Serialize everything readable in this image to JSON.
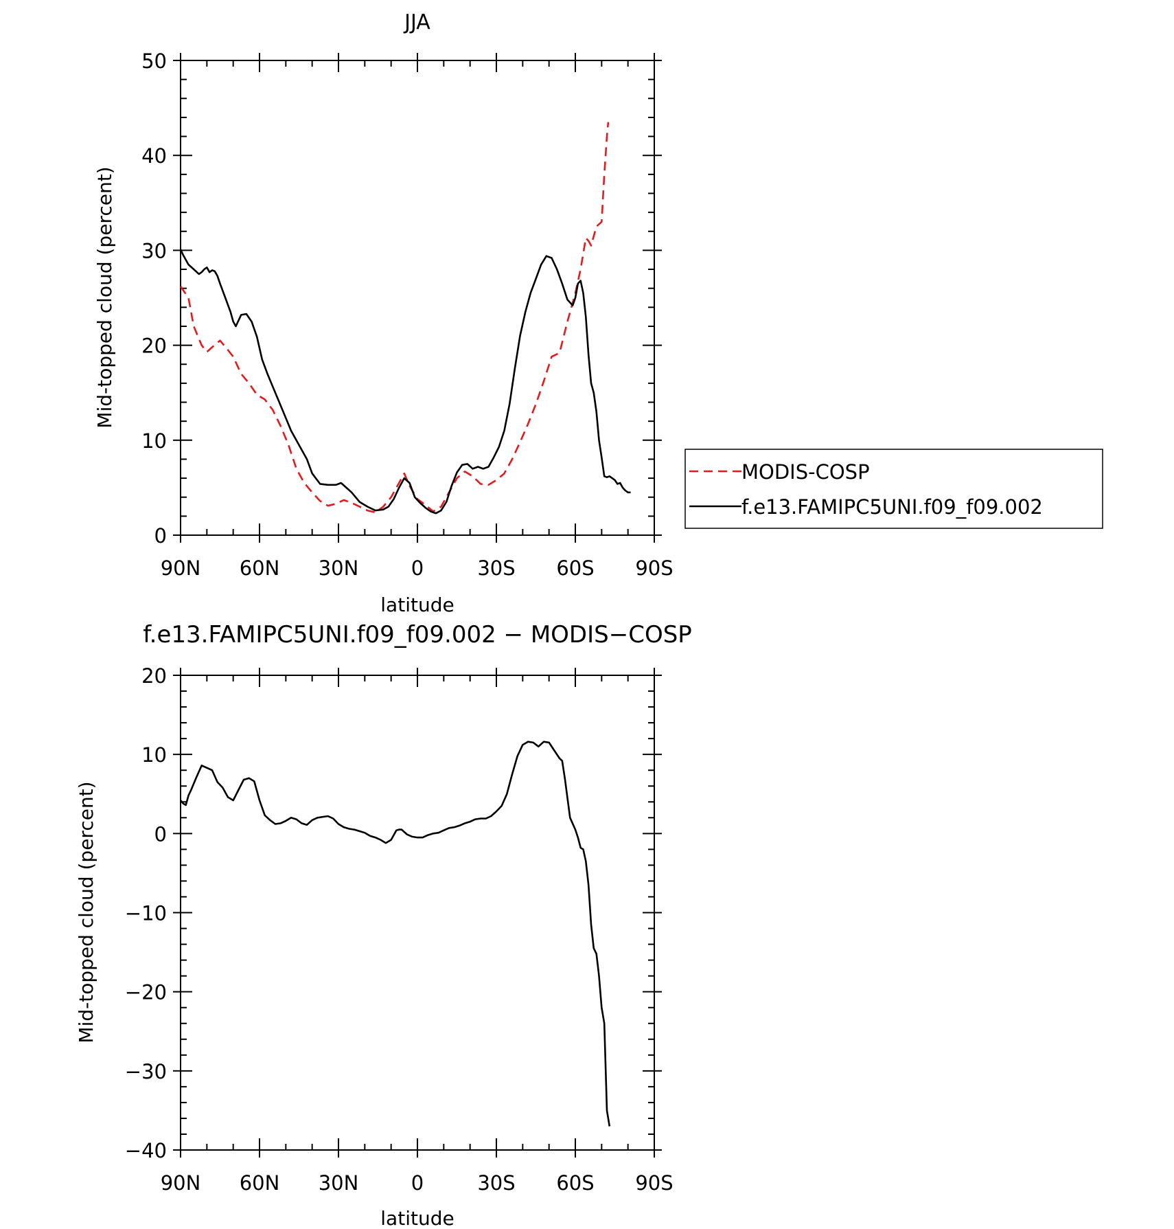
{
  "chart_data": [
    {
      "type": "line",
      "title": "JJA",
      "xlabel": "latitude",
      "ylabel": "Mid-topped cloud (percent)",
      "xlim": [
        90,
        -90
      ],
      "ylim": [
        0,
        50
      ],
      "x_ticks": [
        {
          "value": 90,
          "label": "90N"
        },
        {
          "value": 60,
          "label": "60N"
        },
        {
          "value": 30,
          "label": "30N"
        },
        {
          "value": 0,
          "label": "0"
        },
        {
          "value": -30,
          "label": "30S"
        },
        {
          "value": -60,
          "label": "60S"
        },
        {
          "value": -90,
          "label": "90S"
        }
      ],
      "y_ticks": [
        0,
        10,
        20,
        30,
        40,
        50
      ],
      "grid": false,
      "legend": {
        "placement": "right",
        "entries": [
          "MODIS-COSP",
          "f.e13.FAMIPC5UNI.f09_f09.002"
        ]
      },
      "series": [
        {
          "name": "MODIS-COSP",
          "color": "#e41a1c",
          "dash": "dashed",
          "x": [
            90,
            87,
            85,
            82,
            80,
            78,
            75,
            72,
            70,
            67,
            64,
            61,
            58,
            55,
            52,
            49,
            46,
            43,
            40,
            37,
            34,
            31,
            28,
            25,
            22,
            19,
            16,
            13,
            10,
            7,
            5,
            3,
            0,
            -3,
            -6,
            -9,
            -12,
            -15,
            -18,
            -21,
            -24,
            -27,
            -30,
            -33,
            -36,
            -39,
            -42,
            -45,
            -48,
            -51,
            -54,
            -57,
            -60,
            -62,
            -64,
            -65,
            -66,
            -68,
            -70,
            -71,
            -72,
            -72.5
          ],
          "y": [
            26.2,
            25,
            22,
            20,
            19.3,
            19.8,
            20.5,
            19.5,
            18.8,
            17,
            16,
            14.8,
            14.3,
            13.2,
            11.5,
            9.5,
            7,
            5.5,
            4.5,
            3.6,
            3.1,
            3.3,
            3.7,
            3.4,
            3.0,
            2.6,
            2.4,
            3.0,
            4.0,
            5.5,
            6.5,
            5.2,
            3.8,
            3.2,
            2.5,
            3.0,
            4.5,
            6.0,
            6.7,
            6.2,
            5.4,
            5.3,
            5.8,
            6.5,
            8,
            9.8,
            11.7,
            13.8,
            16.2,
            18.8,
            19.2,
            22.5,
            25.5,
            28,
            31.3,
            31,
            30.5,
            32.5,
            33,
            38,
            42,
            43.5
          ]
        },
        {
          "name": "f.e13.FAMIPC5UNI.f09_f09.002",
          "color": "#000000",
          "dash": "solid",
          "x": [
            90,
            89,
            87,
            85,
            83,
            82,
            81,
            80,
            79,
            78,
            77,
            76,
            75,
            73,
            71,
            70,
            69,
            67,
            65,
            63,
            61,
            59,
            57,
            54,
            51,
            48,
            45,
            42,
            40,
            37,
            34,
            31,
            29,
            27,
            25,
            22,
            19,
            16,
            13,
            11,
            9,
            7,
            5,
            3,
            1,
            -1,
            -3,
            -5,
            -7,
            -9,
            -11,
            -13,
            -15,
            -17,
            -19,
            -21,
            -23,
            -25,
            -27,
            -29,
            -31,
            -33,
            -35,
            -37,
            -39,
            -41,
            -43,
            -45,
            -47,
            -49,
            -51,
            -53,
            -55,
            -57,
            -59,
            -60,
            -61,
            -62,
            -63,
            -64,
            -65,
            -66,
            -67,
            -68,
            -69,
            -70,
            -71,
            -72,
            -73,
            -74,
            -75,
            -76,
            -77,
            -78,
            -79,
            -80,
            -81
          ],
          "y": [
            30.1,
            29.5,
            28.5,
            28,
            27.5,
            27.7,
            28,
            28.2,
            27.7,
            27.9,
            27.8,
            27.3,
            26.5,
            25,
            23.5,
            22.5,
            22,
            23.2,
            23.3,
            22.5,
            20.9,
            18.5,
            17,
            15,
            13,
            11,
            9.5,
            8,
            6.5,
            5.4,
            5.3,
            5.3,
            5.5,
            5.0,
            4.5,
            3.5,
            3.0,
            2.6,
            2.7,
            3.0,
            3.8,
            5.0,
            6.0,
            5.5,
            4.0,
            3.4,
            2.9,
            2.5,
            2.3,
            2.6,
            3.5,
            5.2,
            6.6,
            7.4,
            7.5,
            7.0,
            7.2,
            7.0,
            7.2,
            8.2,
            9.3,
            11,
            13.8,
            17.5,
            21,
            23.5,
            25.5,
            27,
            28.5,
            29.4,
            29.2,
            28,
            26.5,
            24.8,
            24.2,
            25,
            26.5,
            26.8,
            25.5,
            23,
            19,
            16,
            15,
            13,
            10,
            8.2,
            6.2,
            6.1,
            6.2,
            6.0,
            5.8,
            5.4,
            5.5,
            5.0,
            4.7,
            4.5,
            4.5
          ]
        }
      ]
    },
    {
      "type": "line",
      "title": "f.e13.FAMIPC5UNI.f09_f09.002 − MODIS−COSP",
      "xlabel": "latitude",
      "ylabel": "Mid-topped cloud (percent)",
      "xlim": [
        90,
        -90
      ],
      "ylim": [
        -40,
        20
      ],
      "x_ticks": [
        {
          "value": 90,
          "label": "90N"
        },
        {
          "value": 60,
          "label": "60N"
        },
        {
          "value": 30,
          "label": "30N"
        },
        {
          "value": 0,
          "label": "0"
        },
        {
          "value": -30,
          "label": "30S"
        },
        {
          "value": -60,
          "label": "60S"
        },
        {
          "value": -90,
          "label": "90S"
        }
      ],
      "y_ticks": [
        -40,
        -30,
        -20,
        -10,
        0,
        10,
        20
      ],
      "grid": false,
      "series": [
        {
          "color": "#000000",
          "dash": "solid",
          "x": [
            90,
            89,
            88,
            87,
            86,
            84,
            82,
            80,
            78,
            76,
            74,
            72,
            70,
            68,
            66,
            64,
            62,
            60,
            58,
            56,
            54,
            52,
            50,
            48,
            46,
            44,
            42,
            40,
            38,
            36,
            34,
            32,
            30,
            28,
            26,
            24,
            22,
            20,
            18,
            16,
            14,
            12,
            10,
            8,
            7,
            6,
            4,
            2,
            0,
            -2,
            -4,
            -6,
            -8,
            -10,
            -12,
            -14,
            -16,
            -18,
            -20,
            -22,
            -24,
            -26,
            -28,
            -30,
            -32,
            -34,
            -36,
            -38,
            -40,
            -42,
            -44,
            -46,
            -48,
            -50,
            -52,
            -54,
            -55,
            -56,
            -58,
            -60,
            -61,
            -62,
            -63,
            -64,
            -65,
            -66,
            -67,
            -68,
            -69,
            -70,
            -71,
            -72,
            -73
          ],
          "y": [
            4.2,
            3.8,
            3.6,
            4.8,
            5.5,
            7.1,
            8.6,
            8.3,
            8.0,
            6.5,
            5.8,
            4.6,
            4.2,
            5.5,
            6.8,
            7.0,
            6.6,
            4.2,
            2.3,
            1.7,
            1.2,
            1.3,
            1.6,
            2.0,
            1.8,
            1.3,
            1.1,
            1.7,
            2.0,
            2.1,
            2.2,
            1.9,
            1.2,
            0.8,
            0.6,
            0.5,
            0.3,
            0.1,
            -0.3,
            -0.5,
            -0.8,
            -1.2,
            -0.8,
            0.4,
            0.5,
            0.5,
            -0.1,
            -0.4,
            -0.5,
            -0.5,
            -0.2,
            0.0,
            0.1,
            0.4,
            0.7,
            0.8,
            1.0,
            1.3,
            1.5,
            1.8,
            1.9,
            1.9,
            2.2,
            2.8,
            3.5,
            5.0,
            7.5,
            9.8,
            11.2,
            11.6,
            11.5,
            11.0,
            11.6,
            11.5,
            10.5,
            9.5,
            9.2,
            7.0,
            2.0,
            0.5,
            -0.5,
            -1.8,
            -2.0,
            -3.5,
            -6.5,
            -11.5,
            -14.5,
            -15.2,
            -18.0,
            -22.0,
            -24.0,
            -35.0,
            -37.0
          ]
        }
      ]
    }
  ]
}
